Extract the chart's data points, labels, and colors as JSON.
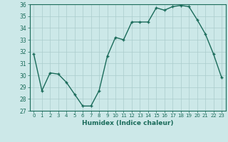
{
  "x": [
    0,
    1,
    2,
    3,
    4,
    5,
    6,
    7,
    8,
    9,
    10,
    11,
    12,
    13,
    14,
    15,
    16,
    17,
    18,
    19,
    20,
    21,
    22,
    23
  ],
  "y": [
    31.8,
    28.7,
    30.2,
    30.1,
    29.4,
    28.4,
    27.4,
    27.4,
    28.7,
    31.6,
    33.2,
    33.0,
    34.5,
    34.5,
    34.5,
    35.7,
    35.5,
    35.8,
    35.9,
    35.8,
    34.7,
    33.5,
    31.8,
    29.8
  ],
  "xlabel": "Humidex (Indice chaleur)",
  "ylabel": "",
  "ylim": [
    27,
    36
  ],
  "xlim": [
    -0.5,
    23.5
  ],
  "yticks": [
    27,
    28,
    29,
    30,
    31,
    32,
    33,
    34,
    35,
    36
  ],
  "xticks": [
    0,
    1,
    2,
    3,
    4,
    5,
    6,
    7,
    8,
    9,
    10,
    11,
    12,
    13,
    14,
    15,
    16,
    17,
    18,
    19,
    20,
    21,
    22,
    23
  ],
  "line_color": "#1a6b5a",
  "marker_color": "#1a6b5a",
  "bg_color": "#cce8e8",
  "grid_color": "#aacccc",
  "title": ""
}
